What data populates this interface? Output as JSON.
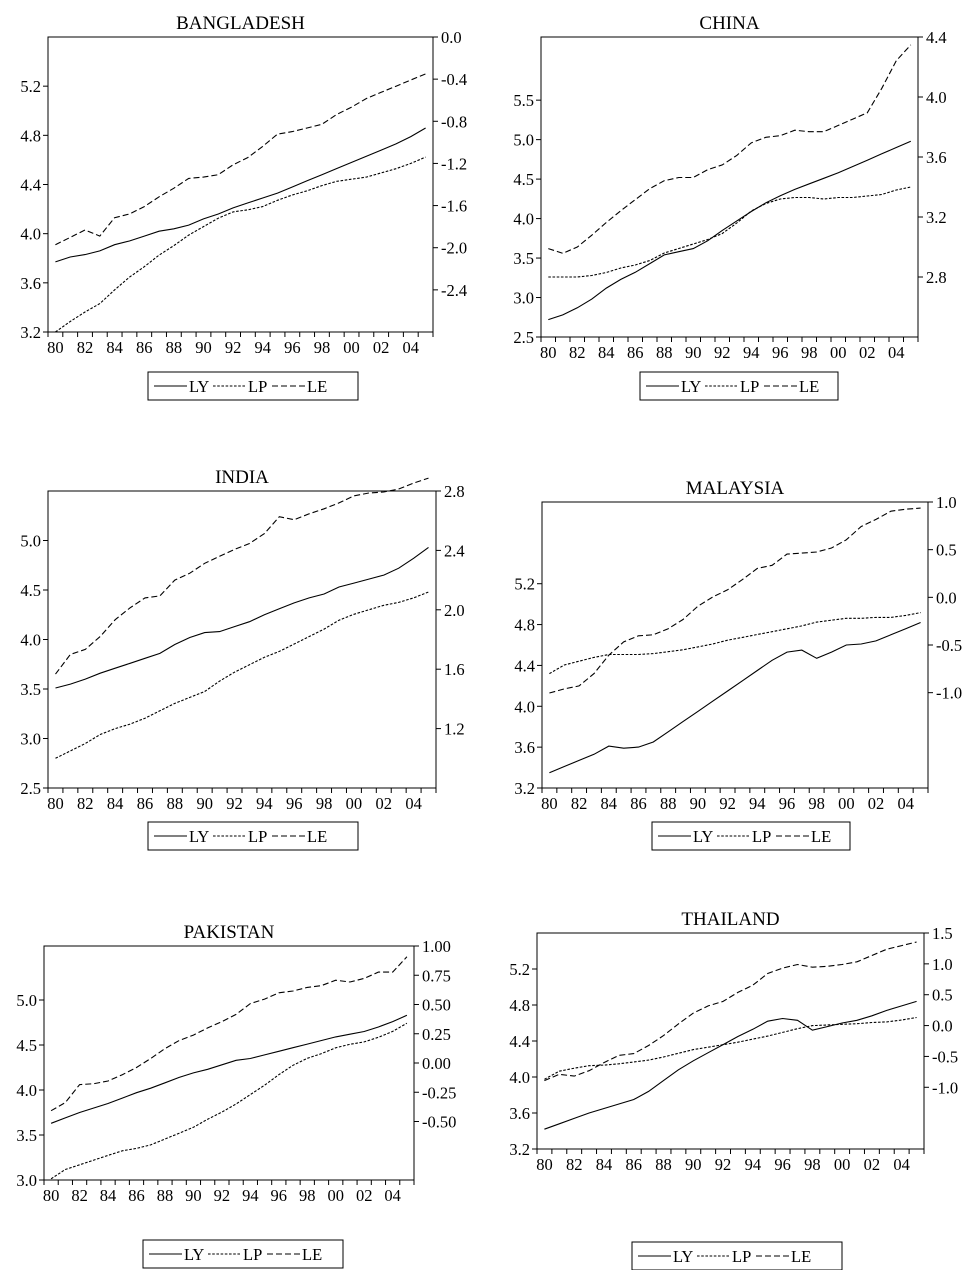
{
  "chart_data": [
    {
      "type": "line",
      "title": "BANGLADESH",
      "x": [
        "80",
        "81",
        "82",
        "83",
        "84",
        "85",
        "86",
        "87",
        "88",
        "89",
        "90",
        "91",
        "92",
        "93",
        "94",
        "95",
        "96",
        "97",
        "98",
        "99",
        "00",
        "01",
        "02",
        "03",
        "04",
        "05"
      ],
      "xticks": [
        "80",
        "82",
        "84",
        "86",
        "88",
        "90",
        "92",
        "94",
        "96",
        "98",
        "00",
        "02",
        "04"
      ],
      "ylim_left": [
        3.2,
        5.6
      ],
      "yticks_left": [
        "3.2",
        "3.6",
        "4.0",
        "4.4",
        "4.8",
        "5.2"
      ],
      "ylim_right": [
        -2.8,
        0.0
      ],
      "yticks_right": [
        "-2.4",
        "-2.0",
        "-1.6",
        "-1.2",
        "-0.8",
        "-0.4",
        "0.0"
      ],
      "legend": [
        "LY",
        "LP",
        "LE"
      ],
      "series": [
        {
          "name": "LY",
          "axis": "left",
          "values": [
            3.77,
            3.81,
            3.83,
            3.86,
            3.91,
            3.94,
            3.98,
            4.02,
            4.04,
            4.07,
            4.12,
            4.16,
            4.21,
            4.25,
            4.29,
            4.33,
            4.38,
            4.43,
            4.48,
            4.53,
            4.58,
            4.63,
            4.68,
            4.73,
            4.79,
            4.86
          ]
        },
        {
          "name": "LP",
          "axis": "right",
          "values": [
            -2.8,
            -2.7,
            -2.61,
            -2.53,
            -2.4,
            -2.28,
            -2.18,
            -2.07,
            -1.98,
            -1.88,
            -1.8,
            -1.72,
            -1.66,
            -1.64,
            -1.61,
            -1.55,
            -1.5,
            -1.46,
            -1.41,
            -1.37,
            -1.35,
            -1.33,
            -1.29,
            -1.25,
            -1.2,
            -1.14
          ]
        },
        {
          "name": "LE",
          "axis": "left",
          "values": [
            3.91,
            3.97,
            4.03,
            3.98,
            4.13,
            4.16,
            4.22,
            4.3,
            4.37,
            4.45,
            4.46,
            4.48,
            4.56,
            4.62,
            4.71,
            4.81,
            4.83,
            4.86,
            4.89,
            4.97,
            5.03,
            5.1,
            5.15,
            5.2,
            5.25,
            5.3
          ]
        }
      ]
    },
    {
      "type": "line",
      "title": "CHINA",
      "x": [
        "80",
        "81",
        "82",
        "83",
        "84",
        "85",
        "86",
        "87",
        "88",
        "89",
        "90",
        "91",
        "92",
        "93",
        "94",
        "95",
        "96",
        "97",
        "98",
        "99",
        "00",
        "01",
        "02",
        "03",
        "04",
        "05"
      ],
      "xticks": [
        "80",
        "82",
        "84",
        "86",
        "88",
        "90",
        "92",
        "94",
        "96",
        "98",
        "00",
        "02",
        "04"
      ],
      "ylim_left": [
        2.5,
        6.3
      ],
      "yticks_left": [
        "2.5",
        "3.0",
        "3.5",
        "4.0",
        "4.5",
        "5.0",
        "5.5"
      ],
      "ylim_right": [
        2.4,
        4.4
      ],
      "yticks_right": [
        "2.8",
        "3.2",
        "3.6",
        "4.0",
        "4.4"
      ],
      "legend": [
        "LY",
        "LP",
        "LE"
      ],
      "series": [
        {
          "name": "LY",
          "axis": "left",
          "values": [
            2.72,
            2.78,
            2.87,
            2.98,
            3.12,
            3.23,
            3.32,
            3.43,
            3.54,
            3.58,
            3.62,
            3.72,
            3.85,
            3.97,
            4.09,
            4.2,
            4.29,
            4.37,
            4.44,
            4.51,
            4.58,
            4.66,
            4.74,
            4.82,
            4.9,
            4.98
          ]
        },
        {
          "name": "LP",
          "axis": "right",
          "values": [
            2.8,
            2.8,
            2.8,
            2.81,
            2.83,
            2.86,
            2.88,
            2.91,
            2.96,
            2.99,
            3.02,
            3.05,
            3.09,
            3.16,
            3.24,
            3.29,
            3.32,
            3.33,
            3.33,
            3.32,
            3.33,
            3.33,
            3.34,
            3.35,
            3.38,
            3.4
          ]
        },
        {
          "name": "LE",
          "axis": "left",
          "values": [
            3.62,
            3.56,
            3.64,
            3.79,
            3.95,
            4.1,
            4.24,
            4.38,
            4.48,
            4.52,
            4.52,
            4.62,
            4.68,
            4.8,
            4.96,
            5.03,
            5.05,
            5.12,
            5.1,
            5.1,
            5.18,
            5.26,
            5.34,
            5.65,
            6.0,
            6.2
          ]
        }
      ]
    },
    {
      "type": "line",
      "title": "INDIA",
      "x": [
        "80",
        "81",
        "82",
        "83",
        "84",
        "85",
        "86",
        "87",
        "88",
        "89",
        "90",
        "91",
        "92",
        "93",
        "94",
        "95",
        "96",
        "97",
        "98",
        "99",
        "00",
        "01",
        "02",
        "03",
        "04",
        "05"
      ],
      "xticks": [
        "80",
        "82",
        "84",
        "86",
        "88",
        "90",
        "92",
        "94",
        "96",
        "98",
        "00",
        "02",
        "04"
      ],
      "ylim_left": [
        2.5,
        5.5
      ],
      "yticks_left": [
        "2.5",
        "3.0",
        "3.5",
        "4.0",
        "4.5",
        "5.0"
      ],
      "ylim_right": [
        0.8,
        2.8
      ],
      "yticks_right": [
        "1.2",
        "1.6",
        "2.0",
        "2.4",
        "2.8"
      ],
      "legend": [
        "LY",
        "LP",
        "LE"
      ],
      "series": [
        {
          "name": "LY",
          "axis": "left",
          "values": [
            3.51,
            3.55,
            3.6,
            3.66,
            3.71,
            3.76,
            3.81,
            3.86,
            3.95,
            4.02,
            4.07,
            4.08,
            4.13,
            4.18,
            4.25,
            4.31,
            4.37,
            4.42,
            4.46,
            4.53,
            4.57,
            4.61,
            4.65,
            4.72,
            4.82,
            4.93
          ]
        },
        {
          "name": "LP",
          "axis": "right",
          "values": [
            1.0,
            1.05,
            1.1,
            1.16,
            1.2,
            1.23,
            1.27,
            1.32,
            1.37,
            1.41,
            1.45,
            1.52,
            1.58,
            1.63,
            1.68,
            1.72,
            1.77,
            1.82,
            1.87,
            1.93,
            1.97,
            2.0,
            2.03,
            2.05,
            2.08,
            2.12
          ]
        },
        {
          "name": "LE",
          "axis": "left",
          "values": [
            3.65,
            3.85,
            3.9,
            4.03,
            4.2,
            4.32,
            4.42,
            4.44,
            4.6,
            4.67,
            4.77,
            4.84,
            4.91,
            4.97,
            5.07,
            5.24,
            5.21,
            5.27,
            5.32,
            5.38,
            5.45,
            5.48,
            5.49,
            5.52,
            5.58,
            5.63
          ]
        }
      ]
    },
    {
      "type": "line",
      "title": "MALAYSIA",
      "x": [
        "80",
        "81",
        "82",
        "83",
        "84",
        "85",
        "86",
        "87",
        "88",
        "89",
        "90",
        "91",
        "92",
        "93",
        "94",
        "95",
        "96",
        "97",
        "98",
        "99",
        "00",
        "01",
        "02",
        "03",
        "04",
        "05"
      ],
      "xticks": [
        "80",
        "82",
        "84",
        "86",
        "88",
        "90",
        "92",
        "94",
        "96",
        "98",
        "00",
        "02",
        "04"
      ],
      "ylim_left": [
        3.2,
        6.0
      ],
      "yticks_left": [
        "3.2",
        "3.6",
        "4.0",
        "4.4",
        "4.8",
        "5.2"
      ],
      "ylim_right": [
        -2.0,
        1.0
      ],
      "yticks_right": [
        "-1.0",
        "-0.5",
        "0.0",
        "0.5",
        "1.0"
      ],
      "legend": [
        "LY",
        "LP",
        "LE"
      ],
      "series": [
        {
          "name": "LY",
          "axis": "left",
          "values": [
            3.35,
            3.41,
            3.47,
            3.53,
            3.61,
            3.59,
            3.6,
            3.65,
            3.75,
            3.85,
            3.95,
            4.05,
            4.15,
            4.25,
            4.35,
            4.45,
            4.53,
            4.55,
            4.47,
            4.53,
            4.6,
            4.61,
            4.64,
            4.7,
            4.76,
            4.82
          ]
        },
        {
          "name": "LP",
          "axis": "right",
          "values": [
            -0.8,
            -0.71,
            -0.67,
            -0.63,
            -0.6,
            -0.6,
            -0.6,
            -0.59,
            -0.57,
            -0.55,
            -0.52,
            -0.49,
            -0.45,
            -0.42,
            -0.39,
            -0.36,
            -0.33,
            -0.3,
            -0.26,
            -0.24,
            -0.22,
            -0.22,
            -0.21,
            -0.21,
            -0.19,
            -0.16
          ]
        },
        {
          "name": "LE",
          "axis": "left",
          "values": [
            4.13,
            4.17,
            4.2,
            4.32,
            4.5,
            4.63,
            4.69,
            4.7,
            4.76,
            4.85,
            4.98,
            5.07,
            5.14,
            5.24,
            5.35,
            5.38,
            5.49,
            5.5,
            5.51,
            5.55,
            5.63,
            5.76,
            5.83,
            5.91,
            5.93,
            5.94
          ]
        }
      ]
    },
    {
      "type": "line",
      "title": "PAKISTAN",
      "x": [
        "80",
        "81",
        "82",
        "83",
        "84",
        "85",
        "86",
        "87",
        "88",
        "89",
        "90",
        "91",
        "92",
        "93",
        "94",
        "95",
        "96",
        "97",
        "98",
        "99",
        "00",
        "01",
        "02",
        "03",
        "04",
        "05"
      ],
      "xticks": [
        "80",
        "82",
        "84",
        "86",
        "88",
        "90",
        "92",
        "94",
        "96",
        "98",
        "00",
        "02",
        "04"
      ],
      "ylim_left": [
        3.0,
        5.6
      ],
      "yticks_left": [
        "3.0",
        "3.5",
        "4.0",
        "4.5",
        "5.0"
      ],
      "ylim_right": [
        -1.0,
        1.0
      ],
      "yticks_right": [
        "-0.50",
        "-0.25",
        "0.00",
        "0.25",
        "0.50",
        "0.75",
        "1.00"
      ],
      "legend": [
        "LY",
        "LP",
        "LE"
      ],
      "series": [
        {
          "name": "LY",
          "axis": "left",
          "values": [
            3.63,
            3.69,
            3.75,
            3.8,
            3.85,
            3.91,
            3.97,
            4.02,
            4.08,
            4.14,
            4.19,
            4.23,
            4.28,
            4.33,
            4.35,
            4.39,
            4.43,
            4.47,
            4.51,
            4.55,
            4.59,
            4.62,
            4.65,
            4.7,
            4.76,
            4.83
          ]
        },
        {
          "name": "LP",
          "axis": "right",
          "values": [
            -0.99,
            -0.91,
            -0.87,
            -0.83,
            -0.79,
            -0.75,
            -0.73,
            -0.7,
            -0.65,
            -0.6,
            -0.55,
            -0.48,
            -0.42,
            -0.35,
            -0.27,
            -0.19,
            -0.1,
            -0.02,
            0.04,
            0.08,
            0.13,
            0.16,
            0.18,
            0.22,
            0.27,
            0.34
          ]
        },
        {
          "name": "LE",
          "axis": "left",
          "values": [
            3.77,
            3.86,
            4.06,
            4.07,
            4.1,
            4.17,
            4.25,
            4.35,
            4.46,
            4.55,
            4.61,
            4.69,
            4.76,
            4.84,
            4.96,
            5.01,
            5.08,
            5.1,
            5.14,
            5.16,
            5.22,
            5.2,
            5.24,
            5.31,
            5.31,
            5.48
          ]
        }
      ]
    },
    {
      "type": "line",
      "title": "THAILAND",
      "x": [
        "80",
        "81",
        "82",
        "83",
        "84",
        "85",
        "86",
        "87",
        "88",
        "89",
        "90",
        "91",
        "92",
        "93",
        "94",
        "95",
        "96",
        "97",
        "98",
        "99",
        "00",
        "01",
        "02",
        "03",
        "04",
        "05"
      ],
      "xticks": [
        "80",
        "82",
        "84",
        "86",
        "88",
        "90",
        "92",
        "94",
        "96",
        "98",
        "00",
        "02",
        "04"
      ],
      "ylim_left": [
        3.2,
        5.6
      ],
      "yticks_left": [
        "3.2",
        "3.6",
        "4.0",
        "4.4",
        "4.8",
        "5.2"
      ],
      "ylim_right": [
        -2.0,
        1.5
      ],
      "yticks_right": [
        "-1.0",
        "-0.5",
        "0.0",
        "0.5",
        "1.0",
        "1.5"
      ],
      "legend": [
        "LY",
        "LP",
        "LE"
      ],
      "series": [
        {
          "name": "LY",
          "axis": "left",
          "values": [
            3.42,
            3.48,
            3.54,
            3.6,
            3.65,
            3.7,
            3.75,
            3.84,
            3.96,
            4.08,
            4.18,
            4.27,
            4.36,
            4.45,
            4.53,
            4.62,
            4.65,
            4.63,
            4.52,
            4.56,
            4.6,
            4.63,
            4.68,
            4.74,
            4.79,
            4.84
          ]
        },
        {
          "name": "LP",
          "axis": "right",
          "values": [
            -0.87,
            -0.74,
            -0.69,
            -0.65,
            -0.64,
            -0.62,
            -0.59,
            -0.56,
            -0.51,
            -0.45,
            -0.39,
            -0.35,
            -0.31,
            -0.27,
            -0.22,
            -0.17,
            -0.11,
            -0.05,
            0.0,
            0.01,
            0.02,
            0.03,
            0.05,
            0.06,
            0.09,
            0.13
          ]
        },
        {
          "name": "LE",
          "axis": "left",
          "values": [
            3.96,
            4.03,
            4.01,
            4.07,
            4.16,
            4.24,
            4.26,
            4.35,
            4.46,
            4.59,
            4.71,
            4.79,
            4.84,
            4.94,
            5.02,
            5.15,
            5.21,
            5.25,
            5.22,
            5.23,
            5.25,
            5.28,
            5.35,
            5.42,
            5.46,
            5.5
          ]
        }
      ]
    }
  ]
}
